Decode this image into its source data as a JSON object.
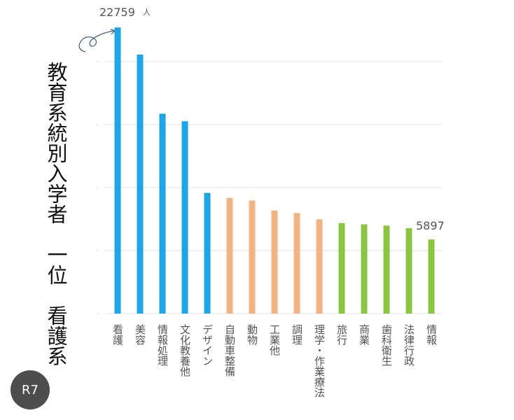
{
  "badge": "R7",
  "chart_data": {
    "type": "bar",
    "title": "教育系統別入学者　一位　看護系",
    "unit": "人",
    "categories": [
      "看護",
      "美容",
      "情報処理",
      "文化教養他",
      "デザイン",
      "自動車整備",
      "動物",
      "工業他",
      "調理",
      "理学・作業療法",
      "旅行",
      "商業",
      "歯科衛生",
      "法律行政",
      "情報"
    ],
    "values": [
      22759,
      20600,
      15900,
      15300,
      9600,
      9200,
      9000,
      8200,
      8000,
      7500,
      7200,
      7100,
      7000,
      6800,
      5897
    ],
    "value_labels": [
      "22759",
      null,
      null,
      null,
      null,
      null,
      null,
      null,
      null,
      null,
      null,
      null,
      null,
      null,
      "5897"
    ],
    "colors": [
      "#1aa7e8",
      "#1aa7e8",
      "#1aa7e8",
      "#1aa7e8",
      "#1aa7e8",
      "#f4b183",
      "#f4b183",
      "#f4b183",
      "#f4b183",
      "#f4b183",
      "#8cc63f",
      "#8cc63f",
      "#8cc63f",
      "#8cc63f",
      "#8cc63f"
    ],
    "ylim": [
      0,
      25000
    ]
  }
}
